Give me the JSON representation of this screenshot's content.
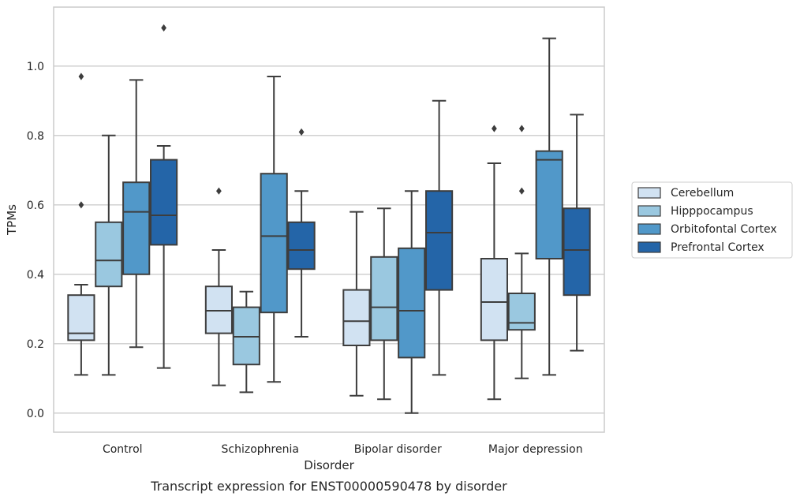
{
  "chart_data": {
    "type": "boxplot",
    "caption": "Transcript expression for ENST00000590478 by disorder",
    "xlabel": "Disorder",
    "ylabel": "TPMs",
    "ylim": [
      -0.055,
      1.17
    ],
    "yticks": [
      0.0,
      0.2,
      0.4,
      0.6,
      0.8,
      1.0
    ],
    "ytick_labels": [
      "0.0",
      "0.2",
      "0.4",
      "0.6",
      "0.8",
      "1.0"
    ],
    "grid": "horizontal",
    "legend_position": "right",
    "categories": [
      "Control",
      "Schizophrenia",
      "Bipolar disorder",
      "Major depression"
    ],
    "series": [
      {
        "name": "Cerebellum",
        "color": "#d1e2f2",
        "boxes": [
          {
            "whislo": 0.11,
            "q1": 0.21,
            "med": 0.23,
            "q3": 0.34,
            "whishi": 0.37,
            "fliers": [
              0.6,
              0.97
            ]
          },
          {
            "whislo": 0.08,
            "q1": 0.23,
            "med": 0.295,
            "q3": 0.365,
            "whishi": 0.47,
            "fliers": [
              0.64
            ]
          },
          {
            "whislo": 0.05,
            "q1": 0.195,
            "med": 0.265,
            "q3": 0.355,
            "whishi": 0.58,
            "fliers": []
          },
          {
            "whislo": 0.04,
            "q1": 0.21,
            "med": 0.32,
            "q3": 0.445,
            "whishi": 0.72,
            "fliers": [
              0.82
            ]
          }
        ]
      },
      {
        "name": "Hipppocampus",
        "color": "#9ac8e0",
        "boxes": [
          {
            "whislo": 0.11,
            "q1": 0.365,
            "med": 0.44,
            "q3": 0.55,
            "whishi": 0.8,
            "fliers": []
          },
          {
            "whislo": 0.06,
            "q1": 0.14,
            "med": 0.22,
            "q3": 0.305,
            "whishi": 0.35,
            "fliers": []
          },
          {
            "whislo": 0.04,
            "q1": 0.21,
            "med": 0.305,
            "q3": 0.45,
            "whishi": 0.59,
            "fliers": []
          },
          {
            "whislo": 0.1,
            "q1": 0.24,
            "med": 0.26,
            "q3": 0.345,
            "whishi": 0.46,
            "fliers": [
              0.64,
              0.82
            ]
          }
        ]
      },
      {
        "name": "Orbitofontal Cortex",
        "color": "#5198c9",
        "boxes": [
          {
            "whislo": 0.19,
            "q1": 0.4,
            "med": 0.58,
            "q3": 0.665,
            "whishi": 0.96,
            "fliers": []
          },
          {
            "whislo": 0.09,
            "q1": 0.29,
            "med": 0.51,
            "q3": 0.69,
            "whishi": 0.97,
            "fliers": []
          },
          {
            "whislo": 0.0,
            "q1": 0.16,
            "med": 0.295,
            "q3": 0.475,
            "whishi": 0.64,
            "fliers": []
          },
          {
            "whislo": 0.11,
            "q1": 0.445,
            "med": 0.73,
            "q3": 0.755,
            "whishi": 1.08,
            "fliers": []
          }
        ]
      },
      {
        "name": "Prefrontal Cortex",
        "color": "#2465a8",
        "boxes": [
          {
            "whislo": 0.13,
            "q1": 0.485,
            "med": 0.57,
            "q3": 0.73,
            "whishi": 0.77,
            "fliers": [
              1.11
            ]
          },
          {
            "whislo": 0.22,
            "q1": 0.415,
            "med": 0.47,
            "q3": 0.55,
            "whishi": 0.64,
            "fliers": [
              0.81
            ]
          },
          {
            "whislo": 0.11,
            "q1": 0.355,
            "med": 0.52,
            "q3": 0.64,
            "whishi": 0.9,
            "fliers": []
          },
          {
            "whislo": 0.18,
            "q1": 0.34,
            "med": 0.47,
            "q3": 0.59,
            "whishi": 0.86,
            "fliers": []
          }
        ]
      }
    ]
  }
}
